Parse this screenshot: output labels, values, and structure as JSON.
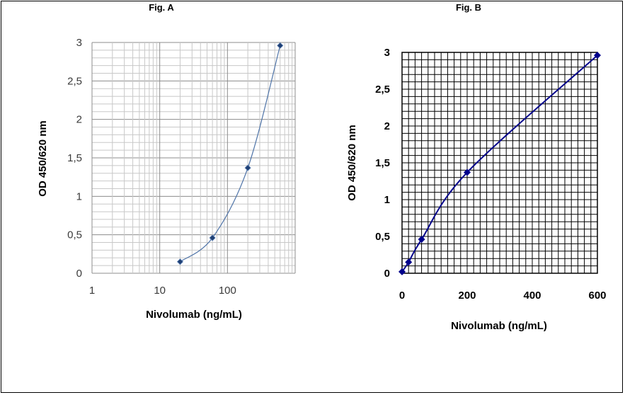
{
  "chart_data": [
    {
      "type": "scatter",
      "title": "Fig. A",
      "xlabel": "Nivolumab (ng/mL)",
      "ylabel": "OD 450/620 nm",
      "x_scale": "log",
      "xlim": [
        1,
        1000
      ],
      "ylim": [
        0,
        3
      ],
      "x_ticks": [
        "1",
        "10",
        "100"
      ],
      "y_ticks": [
        "0",
        "0,5",
        "1",
        "1,5",
        "2",
        "2,5",
        "3"
      ],
      "grid": true,
      "legend": "none",
      "line_color": "#4f74a8",
      "marker_color": "#1f3f73",
      "series": [
        {
          "x": [
            20,
            60,
            200,
            600
          ],
          "y": [
            0.15,
            0.46,
            1.37,
            2.96
          ]
        }
      ]
    },
    {
      "type": "line",
      "title": "Fig. B",
      "xlabel": "Nivolumab (ng/mL)",
      "ylabel": "OD 450/620 nm",
      "x_scale": "linear",
      "xlim": [
        0,
        600
      ],
      "ylim": [
        0,
        3
      ],
      "x_ticks": [
        "0",
        "200",
        "400",
        "600"
      ],
      "y_ticks": [
        "0",
        "0,5",
        "1",
        "1,5",
        "2",
        "2,5",
        "3"
      ],
      "grid": true,
      "legend": "none",
      "line_color": "#00008b",
      "marker_color": "#00008b",
      "series": [
        {
          "x": [
            0,
            20,
            60,
            200,
            600
          ],
          "y": [
            0.02,
            0.15,
            0.46,
            1.37,
            2.96
          ]
        }
      ]
    }
  ]
}
